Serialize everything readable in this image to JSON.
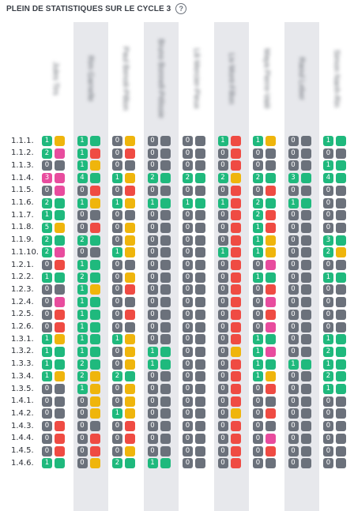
{
  "header": {
    "title": "PLEIN DE STATISTIQUES SUR LE CYCLE 3",
    "help_icon": "?"
  },
  "colors": {
    "green": "#1fb97d",
    "yellow": "#efb50c",
    "red": "#ef4b43",
    "gray": "#6b717b",
    "pink": "#e84c9e",
    "column_highlight": "#e7e8ec"
  },
  "students": [
    {
      "name": "Jules Tirs",
      "highlighted": false
    },
    {
      "name": "Rim Garnelle",
      "highlighted": true
    },
    {
      "name": "Paul Benoit-Pillion",
      "highlighted": false
    },
    {
      "name": "Bruno Bonnell-Pélissie",
      "highlighted": true
    },
    {
      "name": "Lili Mercier-Pieux",
      "highlighted": false
    },
    {
      "name": "Liv Mont-Fillon",
      "highlighted": true
    },
    {
      "name": "Maya Pierre-Valé",
      "highlighted": false
    },
    {
      "name": "Raoul Leber",
      "highlighted": true
    },
    {
      "name": "Simon Nanh-Rin",
      "highlighted": false
    }
  ],
  "rows": [
    {
      "label": "1.1.1.",
      "cells": [
        [
          "1",
          "g",
          "y"
        ],
        [
          "1",
          "g",
          "g"
        ],
        [
          "0",
          "g",
          "y"
        ],
        [
          "0",
          "g",
          "g"
        ],
        [
          "0",
          "g",
          "g"
        ],
        [
          "1",
          "r",
          "r"
        ],
        [
          "1",
          "g",
          "y"
        ],
        [
          "0",
          "g",
          "g"
        ],
        [
          "1",
          "g",
          "g"
        ]
      ]
    },
    {
      "label": "1.1.2.",
      "cells": [
        [
          "2",
          "g",
          "p"
        ],
        [
          "1",
          "g",
          "r"
        ],
        [
          "0",
          "g",
          "r"
        ],
        [
          "0",
          "g",
          "g"
        ],
        [
          "0",
          "g",
          "g"
        ],
        [
          "0",
          "g",
          "r"
        ],
        [
          "0",
          "g",
          "g"
        ],
        [
          "0",
          "g",
          "g"
        ],
        [
          "0",
          "g",
          "g"
        ]
      ]
    },
    {
      "label": "1.1.3.",
      "cells": [
        [
          "0",
          "g",
          "g"
        ],
        [
          "1",
          "g",
          "y"
        ],
        [
          "0",
          "g",
          "g"
        ],
        [
          "0",
          "g",
          "g"
        ],
        [
          "0",
          "g",
          "g"
        ],
        [
          "0",
          "g",
          "r"
        ],
        [
          "0",
          "g",
          "g"
        ],
        [
          "0",
          "g",
          "g"
        ],
        [
          "1",
          "g",
          "g"
        ]
      ]
    },
    {
      "label": "1.1.4.",
      "cells": [
        [
          "3",
          "p",
          "p"
        ],
        [
          "4",
          "g",
          "g"
        ],
        [
          "1",
          "g",
          "y"
        ],
        [
          "2",
          "g",
          "g"
        ],
        [
          "2",
          "g",
          "g"
        ],
        [
          "2",
          "g",
          "y"
        ],
        [
          "2",
          "g",
          "g"
        ],
        [
          "3",
          "g",
          "g"
        ],
        [
          "4",
          "g",
          "g"
        ]
      ]
    },
    {
      "label": "1.1.5.",
      "cells": [
        [
          "0",
          "g",
          "p"
        ],
        [
          "0",
          "g",
          "r"
        ],
        [
          "0",
          "g",
          "r"
        ],
        [
          "0",
          "g",
          "g"
        ],
        [
          "0",
          "g",
          "g"
        ],
        [
          "0",
          "g",
          "r"
        ],
        [
          "0",
          "g",
          "r"
        ],
        [
          "0",
          "g",
          "g"
        ],
        [
          "0",
          "g",
          "g"
        ]
      ]
    },
    {
      "label": "1.1.6.",
      "cells": [
        [
          "2",
          "g",
          "g"
        ],
        [
          "1",
          "g",
          "y"
        ],
        [
          "1",
          "g",
          "y"
        ],
        [
          "1",
          "g",
          "g"
        ],
        [
          "1",
          "g",
          "g"
        ],
        [
          "1",
          "g",
          "r"
        ],
        [
          "2",
          "g",
          "g"
        ],
        [
          "1",
          "g",
          "g"
        ],
        [
          "0",
          "g",
          "g"
        ]
      ]
    },
    {
      "label": "1.1.7.",
      "cells": [
        [
          "1",
          "g",
          "g"
        ],
        [
          "0",
          "g",
          "g"
        ],
        [
          "0",
          "g",
          "g"
        ],
        [
          "0",
          "g",
          "g"
        ],
        [
          "0",
          "g",
          "g"
        ],
        [
          "0",
          "g",
          "r"
        ],
        [
          "2",
          "g",
          "r"
        ],
        [
          "0",
          "g",
          "g"
        ],
        [
          "0",
          "g",
          "g"
        ]
      ]
    },
    {
      "label": "1.1.8.",
      "cells": [
        [
          "5",
          "g",
          "y"
        ],
        [
          "0",
          "g",
          "r"
        ],
        [
          "0",
          "g",
          "y"
        ],
        [
          "0",
          "g",
          "g"
        ],
        [
          "0",
          "g",
          "g"
        ],
        [
          "0",
          "g",
          "r"
        ],
        [
          "1",
          "g",
          "r"
        ],
        [
          "0",
          "g",
          "g"
        ],
        [
          "0",
          "g",
          "g"
        ]
      ]
    },
    {
      "label": "1.1.9.",
      "cells": [
        [
          "2",
          "g",
          "g"
        ],
        [
          "2",
          "g",
          "g"
        ],
        [
          "0",
          "g",
          "y"
        ],
        [
          "0",
          "g",
          "g"
        ],
        [
          "0",
          "g",
          "g"
        ],
        [
          "0",
          "g",
          "r"
        ],
        [
          "1",
          "g",
          "y"
        ],
        [
          "0",
          "g",
          "g"
        ],
        [
          "3",
          "g",
          "g"
        ]
      ]
    },
    {
      "label": "1.1.10.",
      "cells": [
        [
          "2",
          "g",
          "p"
        ],
        [
          "0",
          "g",
          "g"
        ],
        [
          "1",
          "g",
          "y"
        ],
        [
          "0",
          "g",
          "g"
        ],
        [
          "0",
          "g",
          "g"
        ],
        [
          "1",
          "g",
          "r"
        ],
        [
          "1",
          "g",
          "y"
        ],
        [
          "0",
          "g",
          "g"
        ],
        [
          "2",
          "g",
          "y"
        ]
      ]
    },
    {
      "label": "1.2.1.",
      "cells": [
        [
          "0",
          "g",
          "r"
        ],
        [
          "1",
          "g",
          "g"
        ],
        [
          "0",
          "g",
          "g"
        ],
        [
          "0",
          "g",
          "g"
        ],
        [
          "0",
          "g",
          "g"
        ],
        [
          "0",
          "g",
          "r"
        ],
        [
          "0",
          "g",
          "p"
        ],
        [
          "0",
          "g",
          "g"
        ],
        [
          "0",
          "g",
          "g"
        ]
      ]
    },
    {
      "label": "1.2.2.",
      "cells": [
        [
          "1",
          "g",
          "g"
        ],
        [
          "2",
          "g",
          "g"
        ],
        [
          "0",
          "g",
          "y"
        ],
        [
          "0",
          "g",
          "g"
        ],
        [
          "0",
          "g",
          "g"
        ],
        [
          "0",
          "g",
          "r"
        ],
        [
          "1",
          "g",
          "g"
        ],
        [
          "0",
          "g",
          "g"
        ],
        [
          "1",
          "g",
          "g"
        ]
      ]
    },
    {
      "label": "1.2.3.",
      "cells": [
        [
          "0",
          "g",
          "g"
        ],
        [
          "1",
          "g",
          "y"
        ],
        [
          "0",
          "g",
          "r"
        ],
        [
          "0",
          "g",
          "g"
        ],
        [
          "0",
          "g",
          "g"
        ],
        [
          "0",
          "g",
          "r"
        ],
        [
          "0",
          "g",
          "r"
        ],
        [
          "0",
          "g",
          "g"
        ],
        [
          "0",
          "g",
          "g"
        ]
      ]
    },
    {
      "label": "1.2.4.",
      "cells": [
        [
          "0",
          "p",
          "p"
        ],
        [
          "1",
          "g",
          "g"
        ],
        [
          "0",
          "g",
          "g"
        ],
        [
          "0",
          "g",
          "g"
        ],
        [
          "0",
          "g",
          "g"
        ],
        [
          "0",
          "g",
          "r"
        ],
        [
          "0",
          "g",
          "p"
        ],
        [
          "0",
          "g",
          "g"
        ],
        [
          "0",
          "g",
          "g"
        ]
      ]
    },
    {
      "label": "1.2.5.",
      "cells": [
        [
          "0",
          "g",
          "r"
        ],
        [
          "1",
          "g",
          "g"
        ],
        [
          "0",
          "g",
          "r"
        ],
        [
          "0",
          "g",
          "g"
        ],
        [
          "0",
          "g",
          "g"
        ],
        [
          "0",
          "g",
          "r"
        ],
        [
          "0",
          "g",
          "r"
        ],
        [
          "0",
          "g",
          "g"
        ],
        [
          "0",
          "g",
          "g"
        ]
      ]
    },
    {
      "label": "1.2.6.",
      "cells": [
        [
          "0",
          "g",
          "r"
        ],
        [
          "1",
          "g",
          "g"
        ],
        [
          "0",
          "g",
          "g"
        ],
        [
          "0",
          "g",
          "g"
        ],
        [
          "0",
          "g",
          "g"
        ],
        [
          "0",
          "g",
          "r"
        ],
        [
          "0",
          "g",
          "p"
        ],
        [
          "0",
          "g",
          "g"
        ],
        [
          "0",
          "g",
          "g"
        ]
      ]
    },
    {
      "label": "1.3.1.",
      "cells": [
        [
          "1",
          "g",
          "y"
        ],
        [
          "1",
          "g",
          "g"
        ],
        [
          "1",
          "g",
          "y"
        ],
        [
          "0",
          "g",
          "g"
        ],
        [
          "0",
          "g",
          "g"
        ],
        [
          "0",
          "g",
          "r"
        ],
        [
          "1",
          "g",
          "g"
        ],
        [
          "0",
          "g",
          "g"
        ],
        [
          "1",
          "g",
          "g"
        ]
      ]
    },
    {
      "label": "1.3.2.",
      "cells": [
        [
          "1",
          "g",
          "g"
        ],
        [
          "1",
          "g",
          "g"
        ],
        [
          "0",
          "g",
          "y"
        ],
        [
          "1",
          "g",
          "g"
        ],
        [
          "0",
          "g",
          "g"
        ],
        [
          "0",
          "g",
          "y"
        ],
        [
          "1",
          "g",
          "p"
        ],
        [
          "0",
          "g",
          "g"
        ],
        [
          "2",
          "g",
          "g"
        ]
      ]
    },
    {
      "label": "1.3.3.",
      "cells": [
        [
          "1",
          "g",
          "g"
        ],
        [
          "2",
          "g",
          "g"
        ],
        [
          "0",
          "g",
          "y"
        ],
        [
          "1",
          "g",
          "g"
        ],
        [
          "0",
          "g",
          "g"
        ],
        [
          "0",
          "g",
          "r"
        ],
        [
          "1",
          "g",
          "g"
        ],
        [
          "1",
          "g",
          "g"
        ],
        [
          "1",
          "g",
          "g"
        ]
      ]
    },
    {
      "label": "1.3.4.",
      "cells": [
        [
          "1",
          "g",
          "y"
        ],
        [
          "2",
          "g",
          "y"
        ],
        [
          "2",
          "g",
          "g"
        ],
        [
          "0",
          "g",
          "g"
        ],
        [
          "0",
          "g",
          "g"
        ],
        [
          "0",
          "g",
          "r"
        ],
        [
          "1",
          "g",
          "y"
        ],
        [
          "0",
          "g",
          "g"
        ],
        [
          "2",
          "g",
          "g"
        ]
      ]
    },
    {
      "label": "1.3.5.",
      "cells": [
        [
          "0",
          "g",
          "g"
        ],
        [
          "1",
          "g",
          "y"
        ],
        [
          "0",
          "g",
          "y"
        ],
        [
          "0",
          "g",
          "g"
        ],
        [
          "0",
          "g",
          "g"
        ],
        [
          "0",
          "g",
          "r"
        ],
        [
          "0",
          "g",
          "r"
        ],
        [
          "0",
          "g",
          "g"
        ],
        [
          "1",
          "g",
          "g"
        ]
      ]
    },
    {
      "label": "1.4.1.",
      "cells": [
        [
          "0",
          "g",
          "g"
        ],
        [
          "0",
          "g",
          "y"
        ],
        [
          "0",
          "g",
          "y"
        ],
        [
          "0",
          "g",
          "g"
        ],
        [
          "0",
          "g",
          "g"
        ],
        [
          "0",
          "g",
          "r"
        ],
        [
          "0",
          "g",
          "g"
        ],
        [
          "0",
          "g",
          "g"
        ],
        [
          "0",
          "g",
          "g"
        ]
      ]
    },
    {
      "label": "1.4.2.",
      "cells": [
        [
          "0",
          "g",
          "g"
        ],
        [
          "0",
          "g",
          "y"
        ],
        [
          "1",
          "g",
          "y"
        ],
        [
          "0",
          "g",
          "g"
        ],
        [
          "0",
          "g",
          "g"
        ],
        [
          "0",
          "g",
          "y"
        ],
        [
          "0",
          "g",
          "r"
        ],
        [
          "0",
          "g",
          "g"
        ],
        [
          "0",
          "g",
          "g"
        ]
      ]
    },
    {
      "label": "1.4.3.",
      "cells": [
        [
          "0",
          "g",
          "r"
        ],
        [
          "0",
          "g",
          "g"
        ],
        [
          "0",
          "g",
          "r"
        ],
        [
          "0",
          "g",
          "g"
        ],
        [
          "0",
          "g",
          "g"
        ],
        [
          "0",
          "g",
          "r"
        ],
        [
          "0",
          "g",
          "g"
        ],
        [
          "0",
          "g",
          "g"
        ],
        [
          "0",
          "g",
          "g"
        ]
      ]
    },
    {
      "label": "1.4.4.",
      "cells": [
        [
          "0",
          "g",
          "r"
        ],
        [
          "0",
          "g",
          "r"
        ],
        [
          "0",
          "g",
          "r"
        ],
        [
          "0",
          "g",
          "g"
        ],
        [
          "0",
          "g",
          "g"
        ],
        [
          "0",
          "g",
          "r"
        ],
        [
          "0",
          "g",
          "p"
        ],
        [
          "0",
          "g",
          "g"
        ],
        [
          "0",
          "g",
          "g"
        ]
      ]
    },
    {
      "label": "1.4.5.",
      "cells": [
        [
          "0",
          "g",
          "r"
        ],
        [
          "0",
          "g",
          "r"
        ],
        [
          "0",
          "g",
          "y"
        ],
        [
          "0",
          "g",
          "g"
        ],
        [
          "0",
          "g",
          "g"
        ],
        [
          "0",
          "g",
          "r"
        ],
        [
          "0",
          "g",
          "r"
        ],
        [
          "0",
          "g",
          "g"
        ],
        [
          "0",
          "g",
          "g"
        ]
      ]
    },
    {
      "label": "1.4.6.",
      "cells": [
        [
          "1",
          "g",
          "g"
        ],
        [
          "0",
          "g",
          "y"
        ],
        [
          "2",
          "g",
          "g"
        ],
        [
          "1",
          "g",
          "g"
        ],
        [
          "0",
          "g",
          "g"
        ],
        [
          "0",
          "g",
          "r"
        ],
        [
          "0",
          "g",
          "g"
        ],
        [
          "0",
          "g",
          "g"
        ],
        [
          "0",
          "g",
          "g"
        ]
      ]
    }
  ]
}
